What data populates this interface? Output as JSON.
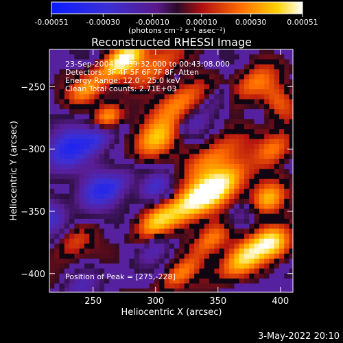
{
  "colorbar": {
    "tick_labels": [
      "-0.00051",
      "-0.00030",
      "-0.00010",
      "0.00010",
      "0.00030",
      "0.00051"
    ],
    "tick_values": [
      -0.00051,
      -0.0003,
      -0.0001,
      0.0001,
      0.0003,
      0.00051
    ],
    "range": [
      -0.00051,
      0.00051
    ],
    "units_label": "(photons cm⁻² s⁻¹ asec⁻²)"
  },
  "chart_data": {
    "type": "heatmap",
    "title": "Reconstructed RHESSI Image",
    "xlabel": "Heliocentric X (arcsec)",
    "ylabel": "Heliocentric Y (arcsec)",
    "xlim": [
      215,
      410
    ],
    "ylim": [
      -415,
      -220
    ],
    "xticks": [
      250,
      300,
      350,
      400
    ],
    "yticks": [
      -250,
      -300,
      -350,
      -400
    ],
    "xtick_labels": [
      "250",
      "300",
      "350",
      "400"
    ],
    "ytick_labels": [
      "−250",
      "−300",
      "−350",
      "−400"
    ],
    "annotations": [
      "23-Sep-2004 00:39:32.000 to 00:43:08.000",
      "Detectors: 3F 4F 5F 6F 7F 8F, Atten",
      "Energy Range: 12.0 - 25.0 keV",
      "Clean     Total counts: 2.71E+03"
    ],
    "peak_label": "Position of Peak = [275,-228]",
    "peak_position": [
      275,
      -228
    ],
    "colors": {
      "background": "#000000",
      "negative_low": "#0b2bff",
      "neutral": "#5a1a8a",
      "positive_high": "#ffffff"
    }
  },
  "footer": {
    "timestamp": "3-May-2022 20:10"
  }
}
